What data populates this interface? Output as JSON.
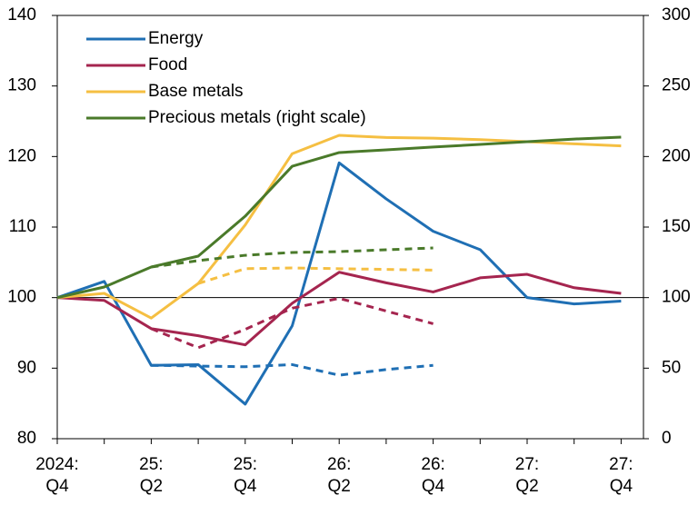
{
  "chart_data": {
    "type": "line",
    "categories": [
      "2024:\nQ4",
      null,
      "25:\nQ2",
      null,
      "25:\nQ4",
      null,
      "26:\nQ2",
      null,
      "26:\nQ4",
      null,
      "27:\nQ2",
      null,
      "27:\nQ4"
    ],
    "ylim": [
      80,
      140
    ],
    "yticks": [
      80,
      90,
      100,
      110,
      120,
      130,
      140
    ],
    "y2lim": [
      0,
      300
    ],
    "y2ticks": [
      0,
      50,
      100,
      150,
      200,
      250,
      300
    ],
    "reference_line": 100,
    "legend": "upper left",
    "series": [
      {
        "name": "Energy",
        "color": "#1f6fb4",
        "values": [
          100,
          102.3,
          90.4,
          90.5,
          84.9,
          96,
          119.1,
          114,
          109.4,
          106.8,
          100,
          99.1,
          99.5
        ]
      },
      {
        "name": "Food",
        "color": "#a5254f",
        "values": [
          100,
          99.6,
          95.6,
          94.6,
          93.3,
          99.2,
          103.6,
          102.1,
          100.8,
          102.8,
          103.3,
          101.4,
          100.6
        ]
      },
      {
        "name": "Base metals",
        "color": "#f5bf42",
        "values": [
          100,
          100.6,
          97.1,
          102,
          110.3,
          120.4,
          123,
          122.7,
          122.6,
          122.4,
          122.1,
          121.8,
          121.5
        ]
      },
      {
        "name": "Precious metals (right scale)",
        "color": "#4a7a2a",
        "axis": "y2",
        "values": [
          100,
          107.5,
          121.7,
          129.4,
          157.7,
          193.1,
          202.8,
          204.7,
          206.7,
          208.6,
          210.5,
          212.4,
          213.7
        ]
      },
      {
        "color": "#1f6fb4",
        "dashed": true,
        "values": [
          null,
          null,
          90.4,
          90.3,
          90.2,
          90.5,
          89,
          89.8,
          90.4,
          null,
          null,
          null,
          null
        ]
      },
      {
        "color": "#a5254f",
        "dashed": true,
        "values": [
          null,
          null,
          95.6,
          92.9,
          95.5,
          98.5,
          99.9,
          98.1,
          96.3,
          null,
          null,
          null,
          null
        ]
      },
      {
        "color": "#f5bf42",
        "dashed": true,
        "values": [
          null,
          null,
          null,
          102,
          104.1,
          104.2,
          104.1,
          104,
          103.9,
          null,
          null,
          null,
          null
        ]
      },
      {
        "color": "#4a7a2a",
        "dashed": true,
        "axis": "y2",
        "values": [
          null,
          null,
          121.7,
          126.2,
          130,
          132,
          132.6,
          133.9,
          135.2,
          null,
          null,
          null,
          null
        ]
      }
    ]
  }
}
